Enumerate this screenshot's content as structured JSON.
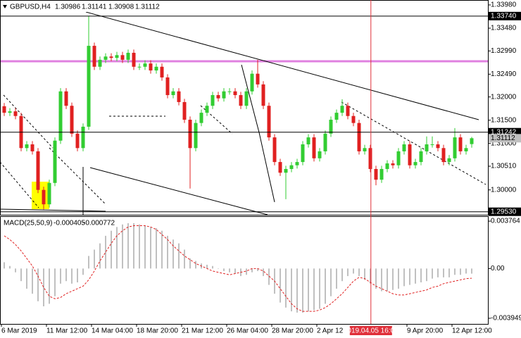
{
  "chart_data": [
    {
      "type": "candlestick",
      "title": "GBPUSD,H4",
      "up_color": "#32cd32",
      "down_color": "#e02020",
      "open": [
        1.318,
        1.3166,
        1.3169,
        1.3159,
        1.309,
        1.3098,
        1.3083,
        1.3,
        1.2969,
        1.3015,
        1.3106,
        1.3212,
        1.3181,
        1.3121,
        1.309,
        1.3136,
        1.331,
        1.3265,
        1.328,
        1.3287,
        1.3284,
        1.329,
        1.328,
        1.3295,
        1.3265,
        1.3265,
        1.3272,
        1.3257,
        1.3265,
        1.3242,
        1.3204,
        1.3212,
        1.3189,
        1.3151,
        1.309,
        1.3144,
        1.3166,
        1.3181,
        1.3204,
        1.3197,
        1.3212,
        1.3212,
        1.3204,
        1.3181,
        1.3212,
        1.325,
        1.3227,
        1.3181,
        1.3113,
        1.306,
        1.3037,
        1.3045,
        1.3053,
        1.306,
        1.3098,
        1.3113,
        1.3068,
        1.3083,
        1.3121,
        1.3151,
        1.3166,
        1.3181,
        1.3159,
        1.3144,
        1.3083,
        1.309,
        1.3045,
        1.3022,
        1.3045,
        1.3057,
        1.3053,
        1.3083,
        1.3098,
        1.3053,
        1.306,
        1.3083,
        1.3098,
        1.3098,
        1.309,
        1.306,
        1.3068,
        1.3113,
        1.3083,
        1.30986
      ],
      "high": [
        1.3187,
        1.3176,
        1.3176,
        1.3166,
        1.3105,
        1.3105,
        1.309,
        1.3007,
        1.3022,
        1.3113,
        1.3219,
        1.3219,
        1.3188,
        1.3128,
        1.3143,
        1.3374,
        1.3317,
        1.3287,
        1.3294,
        1.3294,
        1.3297,
        1.3297,
        1.3302,
        1.3302,
        1.3272,
        1.3279,
        1.3279,
        1.3272,
        1.3272,
        1.3249,
        1.3219,
        1.3219,
        1.3196,
        1.3158,
        1.3151,
        1.3173,
        1.3188,
        1.3211,
        1.3211,
        1.3219,
        1.3219,
        1.3219,
        1.3211,
        1.3219,
        1.3257,
        1.328,
        1.3234,
        1.3188,
        1.312,
        1.3067,
        1.3052,
        1.306,
        1.3067,
        1.3105,
        1.312,
        1.312,
        1.309,
        1.3128,
        1.3158,
        1.3173,
        1.3195,
        1.3188,
        1.3166,
        1.3151,
        1.3097,
        1.3097,
        1.3052,
        1.3052,
        1.3064,
        1.3064,
        1.309,
        1.3105,
        1.3105,
        1.3067,
        1.309,
        1.3115,
        1.3115,
        1.3105,
        1.3097,
        1.3075,
        1.3133,
        1.312,
        1.3097,
        1.31141
      ],
      "low": [
        1.3159,
        1.3159,
        1.3152,
        1.3083,
        1.3083,
        1.3076,
        1.2993,
        1.2958,
        1.2962,
        1.3008,
        1.3099,
        1.3174,
        1.3114,
        1.3083,
        1.3083,
        1.3129,
        1.3258,
        1.3258,
        1.3273,
        1.3277,
        1.3277,
        1.3273,
        1.3273,
        1.3258,
        1.3258,
        1.3258,
        1.325,
        1.325,
        1.3235,
        1.3197,
        1.3197,
        1.3182,
        1.3144,
        1.3003,
        1.3083,
        1.3137,
        1.3159,
        1.3174,
        1.319,
        1.319,
        1.3205,
        1.3197,
        1.3174,
        1.3174,
        1.3205,
        1.322,
        1.3174,
        1.3106,
        1.3053,
        1.303,
        1.298,
        1.3038,
        1.3046,
        1.3053,
        1.3091,
        1.3061,
        1.3061,
        1.3076,
        1.3114,
        1.3144,
        1.3159,
        1.3152,
        1.3137,
        1.3076,
        1.3076,
        1.3038,
        1.301,
        1.3015,
        1.3038,
        1.3046,
        1.3046,
        1.3076,
        1.3046,
        1.3046,
        1.3053,
        1.3076,
        1.3091,
        1.3083,
        1.3053,
        1.3053,
        1.3061,
        1.3076,
        1.3076,
        1.30908
      ],
      "close": [
        1.3166,
        1.3169,
        1.3159,
        1.309,
        1.3098,
        1.3083,
        1.3,
        1.2969,
        1.3015,
        1.3106,
        1.3212,
        1.3181,
        1.3121,
        1.309,
        1.3136,
        1.331,
        1.3265,
        1.328,
        1.3287,
        1.3284,
        1.329,
        1.328,
        1.3295,
        1.3265,
        1.3265,
        1.3272,
        1.3257,
        1.3265,
        1.3242,
        1.3204,
        1.3212,
        1.3189,
        1.3151,
        1.309,
        1.3144,
        1.3166,
        1.3181,
        1.3204,
        1.3197,
        1.3212,
        1.3212,
        1.3204,
        1.3181,
        1.3212,
        1.325,
        1.3227,
        1.3181,
        1.3113,
        1.306,
        1.3037,
        1.3045,
        1.3053,
        1.306,
        1.3098,
        1.3113,
        1.3068,
        1.3083,
        1.3121,
        1.3151,
        1.3166,
        1.3181,
        1.3159,
        1.3144,
        1.3083,
        1.309,
        1.3045,
        1.3022,
        1.3045,
        1.3057,
        1.3053,
        1.3083,
        1.3098,
        1.3053,
        1.306,
        1.3083,
        1.3098,
        1.3098,
        1.309,
        1.306,
        1.3068,
        1.3113,
        1.3083,
        1.309,
        1.31112
      ],
      "ylim": [
        1.29465,
        1.34086
      ],
      "yticks": [
        {
          "value": 1.3398,
          "label": "1.33980"
        },
        {
          "value": 1.3348,
          "label": "1.33480"
        },
        {
          "value": 1.3299,
          "label": "1.32990"
        },
        {
          "value": 1.3249,
          "label": "1.32490"
        },
        {
          "value": 1.32,
          "label": "1.32000"
        },
        {
          "value": 1.315,
          "label": "1.31500"
        },
        {
          "value": 1.31,
          "label": "1.31000"
        },
        {
          "value": 1.3051,
          "label": "1.30510"
        },
        {
          "value": 1.3,
          "label": "1.30000"
        }
      ],
      "price_lines": [
        {
          "value": 1.3374,
          "label": "1.33740"
        },
        1.31242,
        {
          "value": 1.2953,
          "label": "1.29530"
        }
      ],
      "xticks": [
        {
          "value": 0,
          "label": "6 Mar 2019"
        },
        {
          "value": 8,
          "label": "11 Mar 12:00"
        },
        {
          "value": 16,
          "label": "14 Mar 04:00"
        },
        {
          "value": 24,
          "label": "18 Mar 20:00"
        },
        {
          "value": 32,
          "label": "21 Mar 12:00"
        },
        {
          "value": 40,
          "label": "26 Mar 04:00"
        },
        {
          "value": 48,
          "label": "28 Mar 20:00"
        },
        {
          "value": 56,
          "label": "2 Apr 12"
        },
        {
          "value": 72,
          "label": "9 Apr 20:00"
        },
        {
          "value": 80,
          "label": "12 Apr 12:00"
        }
      ],
      "marker": {
        "value": 65.1,
        "label": "2019.04.05 16:00"
      },
      "marker_color": "#e0303a"
    },
    {
      "type": "macd",
      "title": "MACD(25,50,9)",
      "series": [
        {
          "color": "#c0c0c0",
          "values": [
            0.0005,
            0.0002,
            -0.0003,
            -0.001,
            -0.0016,
            -0.002,
            -0.0026,
            -0.003,
            -0.0028,
            -0.0022,
            -0.0012,
            -0.001,
            -0.0012,
            -0.0011,
            -0.0005,
            0.001,
            0.0015,
            0.002,
            0.0026,
            0.003,
            0.0033,
            0.0035,
            0.0036,
            0.0036,
            0.0035,
            0.0034,
            0.0033,
            0.0032,
            0.003,
            0.0026,
            0.0023,
            0.002,
            0.0015,
            0.0008,
            0.0006,
            0.0004,
            0.0003,
            0.0002,
            0.0,
            -0.0002,
            -0.0003,
            -0.0004,
            -0.0006,
            -0.0005,
            -0.0003,
            -0.0002,
            -0.0006,
            -0.0013,
            -0.002,
            -0.0027,
            -0.0031,
            -0.0034,
            -0.0035,
            -0.0035,
            -0.0034,
            -0.0033,
            -0.0032,
            -0.0028,
            -0.0022,
            -0.0016,
            -0.001,
            -0.0006,
            -0.0004,
            -0.0006,
            -0.0009,
            -0.0012,
            -0.0016,
            -0.0018,
            -0.0018,
            -0.0017,
            -0.0016,
            -0.0014,
            -0.0013,
            -0.0012,
            -0.0011,
            -0.001,
            -0.0008,
            -0.0007,
            -0.0007,
            -0.0007,
            -0.0005,
            -0.0005,
            -0.0004,
            -0.000405
          ]
        },
        {
          "color": "#e02020",
          "values": [
            0.0026,
            0.0023,
            0.0019,
            0.0014,
            0.0008,
            0.0002,
            -0.0006,
            -0.0015,
            -0.0022,
            -0.0024,
            -0.0023,
            -0.002,
            -0.0018,
            -0.0016,
            -0.0014,
            -0.0009,
            -0.0002,
            0.0006,
            0.0013,
            0.002,
            0.0026,
            0.003,
            0.0033,
            0.0034,
            0.0034,
            0.0034,
            0.0033,
            0.0031,
            0.0027,
            0.0023,
            0.0018,
            0.0014,
            0.001,
            0.0007,
            0.0004,
            0.0002,
            0.0,
            -0.0002,
            -0.0003,
            -0.0004,
            -0.0005,
            -0.0004,
            -0.0003,
            -0.0002,
            0.0,
            0.0,
            -0.0002,
            -0.0006,
            -0.001,
            -0.0016,
            -0.0022,
            -0.0028,
            -0.0032,
            -0.0034,
            -0.0034,
            -0.0034,
            -0.0033,
            -0.0031,
            -0.0028,
            -0.0024,
            -0.002,
            -0.0015,
            -0.001,
            -0.0007,
            -0.0008,
            -0.0011,
            -0.0014,
            -0.0016,
            -0.0018,
            -0.002,
            -0.0021,
            -0.0021,
            -0.002,
            -0.0019,
            -0.0018,
            -0.0017,
            -0.0015,
            -0.0014,
            -0.0012,
            -0.0011,
            -0.001,
            -0.0009,
            -0.0008,
            -0.000772
          ]
        }
      ],
      "ylim": [
        -0.004399,
        0.004158
      ],
      "yticks": [
        0.003764,
        {
          "value": 0,
          "label": "0.00"
        },
        -0.003949
      ]
    }
  ]
}
